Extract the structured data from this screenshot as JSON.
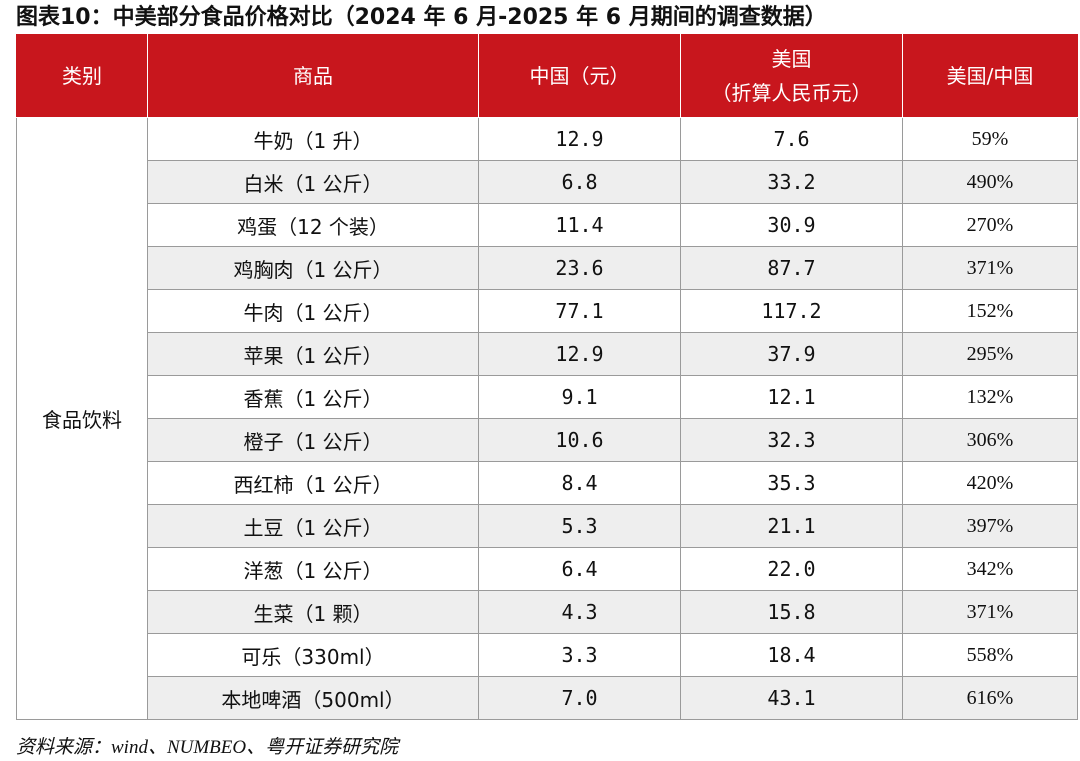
{
  "title": "图表10：中美部分食品价格对比（2024 年 6 月-2025 年 6 月期间的调查数据）",
  "columns": {
    "category": "类别",
    "item": "商品",
    "china": "中国（元）",
    "usa_line1": "美国",
    "usa_line2": "（折算人民币元）",
    "ratio": "美国/中国"
  },
  "category": "食品饮料",
  "rows": [
    {
      "item": "牛奶（1 升）",
      "china": "12.9",
      "usa": "7.6",
      "ratio": "59%"
    },
    {
      "item": "白米（1 公斤）",
      "china": "6.8",
      "usa": "33.2",
      "ratio": "490%"
    },
    {
      "item": "鸡蛋（12 个装）",
      "china": "11.4",
      "usa": "30.9",
      "ratio": "270%"
    },
    {
      "item": "鸡胸肉（1 公斤）",
      "china": "23.6",
      "usa": "87.7",
      "ratio": "371%"
    },
    {
      "item": "牛肉（1 公斤）",
      "china": "77.1",
      "usa": "117.2",
      "ratio": "152%"
    },
    {
      "item": "苹果（1 公斤）",
      "china": "12.9",
      "usa": "37.9",
      "ratio": "295%"
    },
    {
      "item": "香蕉（1 公斤）",
      "china": "9.1",
      "usa": "12.1",
      "ratio": "132%"
    },
    {
      "item": "橙子（1 公斤）",
      "china": "10.6",
      "usa": "32.3",
      "ratio": "306%"
    },
    {
      "item": "西红柿（1 公斤）",
      "china": "8.4",
      "usa": "35.3",
      "ratio": "420%"
    },
    {
      "item": "土豆（1 公斤）",
      "china": "5.3",
      "usa": "21.1",
      "ratio": "397%"
    },
    {
      "item": "洋葱（1 公斤）",
      "china": "6.4",
      "usa": "22.0",
      "ratio": "342%"
    },
    {
      "item": "生菜（1 颗）",
      "china": "4.3",
      "usa": "15.8",
      "ratio": "371%"
    },
    {
      "item": "可乐（330ml）",
      "china": "3.3",
      "usa": "18.4",
      "ratio": "558%"
    },
    {
      "item": "本地啤酒（500ml）",
      "china": "7.0",
      "usa": "43.1",
      "ratio": "616%"
    }
  ],
  "source": "资料来源：wind、NUMBEO、粤开证券研究院"
}
